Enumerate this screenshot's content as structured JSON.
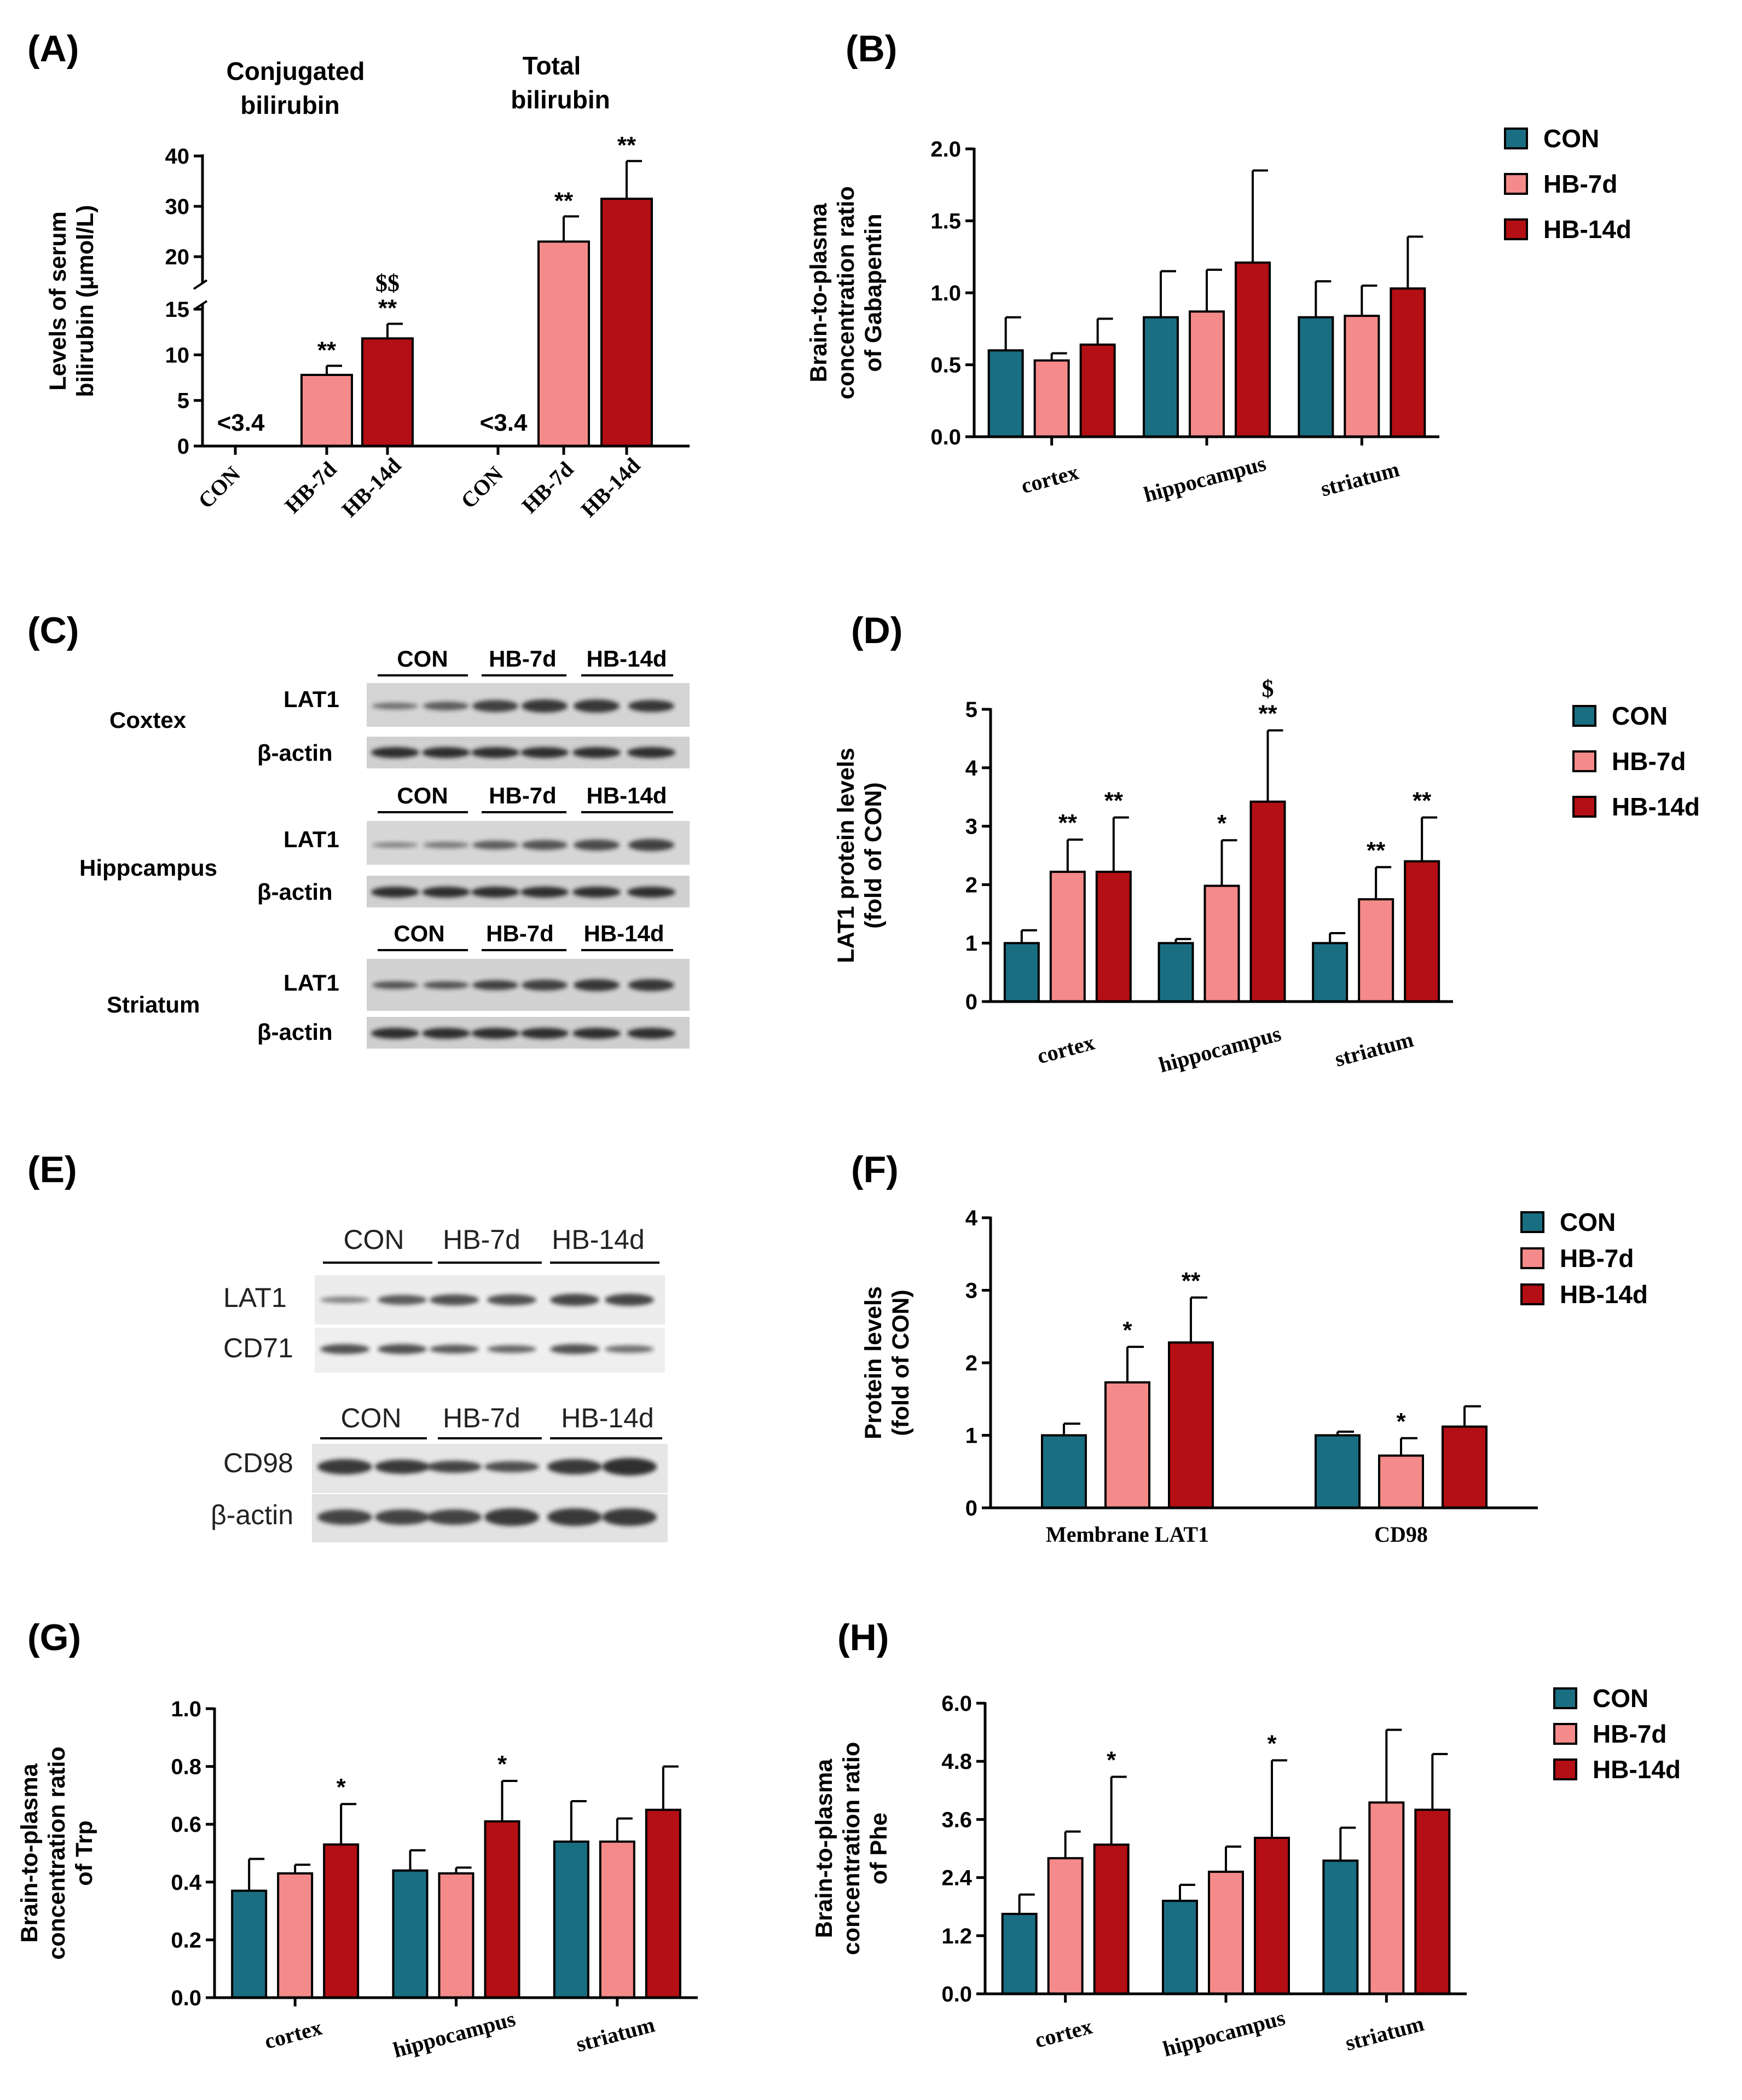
{
  "colors": {
    "CON": "#1a6e82",
    "HB-7d": "#f58a8a",
    "HB-14d": "#b30f14",
    "axis": "#000000"
  },
  "groups": [
    "CON",
    "HB-7d",
    "HB-14d"
  ],
  "panel_labels": {
    "A": "(A)",
    "B": "(B)",
    "C": "(C)",
    "D": "(D)",
    "E": "(E)",
    "F": "(F)",
    "G": "(G)",
    "H": "(H)"
  },
  "chart_data": [
    {
      "id": "A",
      "type": "bar",
      "broken_axis": true,
      "ylabel": [
        "Levels of serum",
        "bilirubin (μmol/L)"
      ],
      "yticks_lower": [
        "0",
        "5",
        "10",
        "15"
      ],
      "yticks_upper": [
        "20",
        "30",
        "40"
      ],
      "subgroups": [
        {
          "title": [
            "Conjugated",
            "bilirubin"
          ],
          "below_lod_label": "<3.4",
          "categories": [
            "CON",
            "HB-7d",
            "HB-14d"
          ],
          "values": [
            null,
            7.8,
            11.8
          ],
          "errors": [
            null,
            1.0,
            1.6
          ],
          "annotations": [
            "",
            "**",
            "**"
          ],
          "annotations2": [
            "",
            "",
            "$$"
          ]
        },
        {
          "title": [
            "Total",
            "bilirubin"
          ],
          "below_lod_label": "<3.4",
          "categories": [
            "CON",
            "HB-7d",
            "HB-14d"
          ],
          "values": [
            null,
            23,
            31.5
          ],
          "errors": [
            null,
            5,
            7.5
          ],
          "annotations": [
            "",
            "**",
            "**"
          ],
          "annotations2": [
            "",
            "",
            ""
          ]
        }
      ]
    },
    {
      "id": "B",
      "type": "bar",
      "ylabel": [
        "Brain-to-plasma",
        "concentration ratio",
        "of Gabapentin"
      ],
      "ylim": [
        0,
        2.0
      ],
      "yticks": [
        "0.0",
        "0.5",
        "1.0",
        "1.5",
        "2.0"
      ],
      "categories": [
        "cortex",
        "hippocampus",
        "striatum"
      ],
      "series": [
        {
          "name": "CON",
          "values": [
            0.6,
            0.83,
            0.83
          ],
          "errors": [
            0.23,
            0.32,
            0.25
          ]
        },
        {
          "name": "HB-7d",
          "values": [
            0.53,
            0.87,
            0.84
          ],
          "errors": [
            0.05,
            0.29,
            0.21
          ]
        },
        {
          "name": "HB-14d",
          "values": [
            0.64,
            1.21,
            1.03
          ],
          "errors": [
            0.18,
            0.64,
            0.36
          ]
        }
      ],
      "annotations": [
        [
          "",
          "",
          ""
        ],
        [
          "",
          "",
          ""
        ],
        [
          "",
          "",
          ""
        ]
      ]
    },
    {
      "id": "D",
      "type": "bar",
      "ylabel": [
        "LAT1 protein levels",
        "(fold of CON)"
      ],
      "ylim": [
        0,
        5
      ],
      "yticks": [
        "0",
        "1",
        "2",
        "3",
        "4",
        "5"
      ],
      "categories": [
        "cortex",
        "hippocampus",
        "striatum"
      ],
      "series": [
        {
          "name": "CON",
          "values": [
            1.0,
            1.0,
            1.0
          ],
          "errors": [
            0.22,
            0.07,
            0.17
          ]
        },
        {
          "name": "HB-7d",
          "values": [
            2.22,
            1.98,
            1.75
          ],
          "errors": [
            0.55,
            0.78,
            0.55
          ]
        },
        {
          "name": "HB-14d",
          "values": [
            2.22,
            3.42,
            2.4
          ],
          "errors": [
            0.93,
            1.22,
            0.75
          ]
        }
      ],
      "annotations": [
        [
          "",
          "",
          ""
        ],
        [
          "**",
          "*",
          "**"
        ],
        [
          "**",
          "**",
          "**"
        ]
      ],
      "annotations2": [
        [
          "",
          "",
          ""
        ],
        [
          "",
          "",
          ""
        ],
        [
          "",
          "$",
          ""
        ]
      ]
    },
    {
      "id": "F",
      "type": "bar",
      "ylabel": [
        "Protein levels",
        "(fold of CON)"
      ],
      "ylim": [
        0,
        4
      ],
      "yticks": [
        "0",
        "1",
        "2",
        "3",
        "4"
      ],
      "categories": [
        "Membrane LAT1",
        "CD98"
      ],
      "series": [
        {
          "name": "CON",
          "values": [
            1.0,
            1.0
          ],
          "errors": [
            0.16,
            0.05
          ]
        },
        {
          "name": "HB-7d",
          "values": [
            1.73,
            0.72
          ],
          "errors": [
            0.49,
            0.24
          ]
        },
        {
          "name": "HB-14d",
          "values": [
            2.28,
            1.12
          ],
          "errors": [
            0.62,
            0.28
          ]
        }
      ],
      "annotations": [
        [
          "",
          ""
        ],
        [
          "*",
          "*"
        ],
        [
          "**",
          ""
        ]
      ]
    },
    {
      "id": "G",
      "type": "bar",
      "ylabel": [
        "Brain-to-plasma",
        "concentration ratio",
        "of Trp"
      ],
      "ylim": [
        0,
        1.0
      ],
      "yticks": [
        "0.0",
        "0.2",
        "0.4",
        "0.6",
        "0.8",
        "1.0"
      ],
      "categories": [
        "cortex",
        "hippocampus",
        "striatum"
      ],
      "series": [
        {
          "name": "CON",
          "values": [
            0.37,
            0.44,
            0.54
          ],
          "errors": [
            0.11,
            0.07,
            0.14
          ]
        },
        {
          "name": "HB-7d",
          "values": [
            0.43,
            0.43,
            0.54
          ],
          "errors": [
            0.03,
            0.02,
            0.08
          ]
        },
        {
          "name": "HB-14d",
          "values": [
            0.53,
            0.61,
            0.65
          ],
          "errors": [
            0.14,
            0.14,
            0.15
          ]
        }
      ],
      "annotations": [
        [
          "",
          "",
          ""
        ],
        [
          "",
          "",
          ""
        ],
        [
          "*",
          "*",
          ""
        ]
      ]
    },
    {
      "id": "H",
      "type": "bar",
      "ylabel": [
        "Brain-to-plasma",
        "concentration ratio",
        "of Phe"
      ],
      "ylim": [
        0,
        6.0
      ],
      "yticks": [
        "0.0",
        "1.2",
        "2.4",
        "3.6",
        "4.8",
        "6.0"
      ],
      "categories": [
        "cortex",
        "hippocampus",
        "striatum"
      ],
      "series": [
        {
          "name": "CON",
          "values": [
            1.65,
            1.92,
            2.75
          ],
          "errors": [
            0.4,
            0.33,
            0.68
          ]
        },
        {
          "name": "HB-7d",
          "values": [
            2.8,
            2.52,
            3.95
          ],
          "errors": [
            0.55,
            0.52,
            1.5
          ]
        },
        {
          "name": "HB-14d",
          "values": [
            3.08,
            3.22,
            3.8
          ],
          "errors": [
            1.4,
            1.6,
            1.15
          ]
        }
      ],
      "annotations": [
        [
          "",
          "",
          ""
        ],
        [
          "",
          "",
          ""
        ],
        [
          "*",
          "*",
          ""
        ]
      ]
    }
  ],
  "blot_C": {
    "header": [
      "CON",
      "HB-7d",
      "HB-14d"
    ],
    "regions": [
      "Coxtex",
      "Hippcampus",
      "Striatum"
    ],
    "proteins": [
      "LAT1",
      "β-actin"
    ]
  },
  "blot_E": {
    "header1": [
      "CON",
      "HB-7d",
      "HB-14d"
    ],
    "header2": [
      "CON",
      "HB-7d",
      "HB-14d"
    ],
    "proteins_top": [
      "LAT1",
      "CD71"
    ],
    "proteins_bottom": [
      "CD98",
      "β-actin"
    ]
  }
}
